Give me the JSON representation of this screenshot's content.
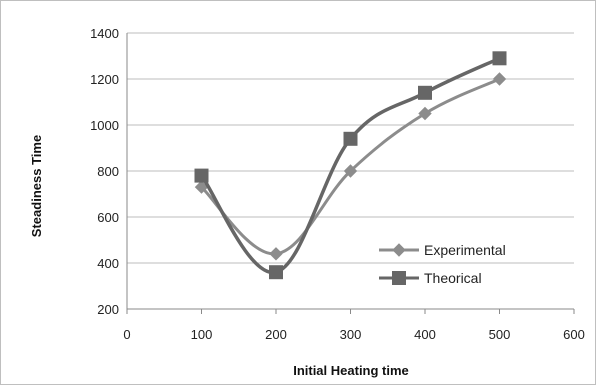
{
  "chart_data": {
    "type": "line",
    "title": "",
    "xlabel": "Initial Heating time",
    "ylabel": "Steadiness Time",
    "xlim": [
      0,
      600
    ],
    "ylim": [
      200,
      1400
    ],
    "x_ticks": [
      0,
      100,
      200,
      300,
      400,
      500,
      600
    ],
    "y_ticks": [
      200,
      400,
      600,
      800,
      1000,
      1200,
      1400
    ],
    "x_tick_labels": [
      "0",
      "100",
      "200",
      "300",
      "400",
      "500",
      "600"
    ],
    "y_tick_labels": [
      "200",
      "400",
      "600",
      "800",
      "1000",
      "1200",
      "1400"
    ],
    "grid": "horizontal",
    "legend_position": "lower-right",
    "smooth": true,
    "series": [
      {
        "name": "Experimental",
        "marker": "diamond",
        "color": "#8c8c8c",
        "x": [
          100,
          200,
          300,
          400,
          500
        ],
        "y": [
          730,
          440,
          800,
          1050,
          1200
        ]
      },
      {
        "name": "Theorical",
        "marker": "square",
        "color": "#666666",
        "x": [
          100,
          200,
          300,
          400,
          500
        ],
        "y": [
          780,
          360,
          940,
          1140,
          1290
        ]
      }
    ]
  }
}
